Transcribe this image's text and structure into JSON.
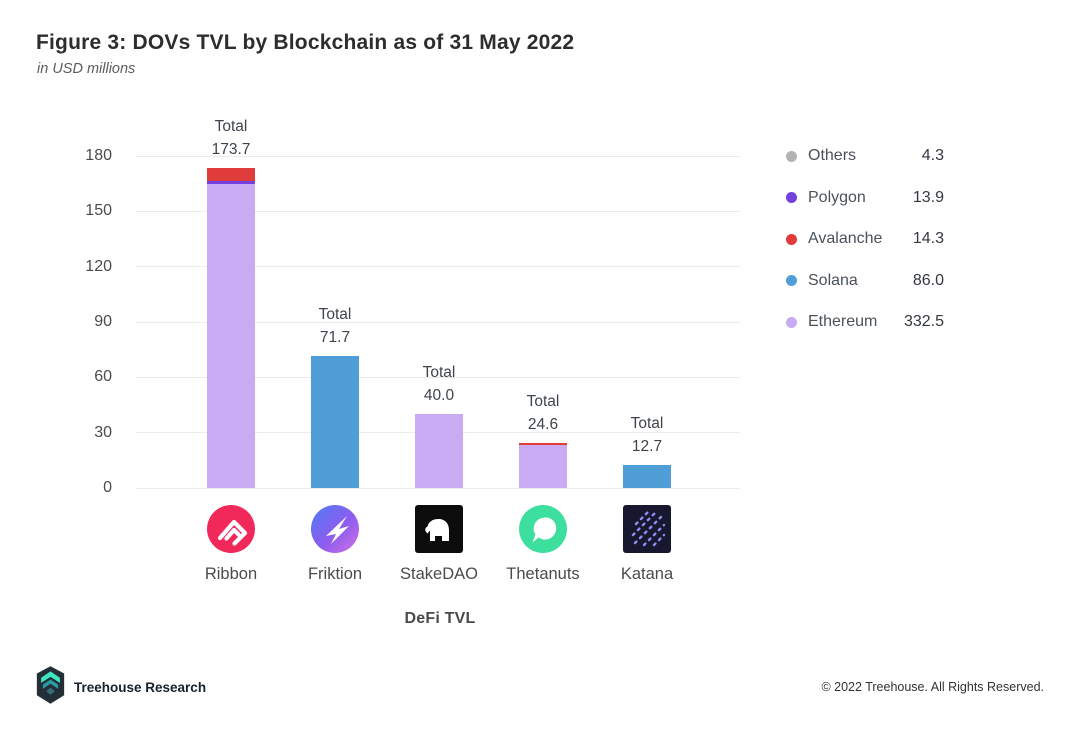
{
  "header": {
    "title": "Figure 3: DOVs TVL by Blockchain as of 31 May 2022",
    "subtitle": "in USD millions"
  },
  "chart_data": {
    "type": "bar",
    "stacked": true,
    "title": "Figure 3: DOVs TVL by Blockchain as of 31 May 2022",
    "subtitle": "in USD millions",
    "xlabel": "DeFi TVL",
    "ylabel": "",
    "ylim": [
      0,
      180
    ],
    "yticks": [
      0,
      30,
      60,
      90,
      120,
      150,
      180
    ],
    "grid": true,
    "legend_position": "right",
    "categories": [
      "Ribbon",
      "Friktion",
      "StakeDAO",
      "Thetanuts",
      "Katana"
    ],
    "total_label": "Total",
    "totals": [
      "173.7",
      "71.7",
      "40.0",
      "24.6",
      "12.7"
    ],
    "series": [
      {
        "name": "Ethereum",
        "color": "#c9abf3",
        "values": [
          164.7,
          0,
          40.0,
          23.1,
          0
        ]
      },
      {
        "name": "Solana",
        "color": "#4f9ed7",
        "values": [
          0,
          71.7,
          0,
          0,
          12.7
        ]
      },
      {
        "name": "Polygon",
        "color": "#7440e0",
        "values": [
          1.8,
          0,
          0,
          0,
          0
        ]
      },
      {
        "name": "Avalanche",
        "color": "#e03c3c",
        "values": [
          7.2,
          0,
          0,
          1.5,
          0
        ]
      },
      {
        "name": "Others",
        "color": "#b4b4b4",
        "values": [
          0,
          0,
          0,
          0,
          0
        ]
      }
    ],
    "legend": [
      {
        "name": "Others",
        "value": "4.3",
        "color": "#b4b4b4"
      },
      {
        "name": "Polygon",
        "value": "13.9",
        "color": "#7440e0"
      },
      {
        "name": "Avalanche",
        "value": "14.3",
        "color": "#e03c3c"
      },
      {
        "name": "Solana",
        "value": "86.0",
        "color": "#4f9ed7"
      },
      {
        "name": "Ethereum",
        "value": "332.5",
        "color": "#c9abf3"
      }
    ]
  },
  "protocols": [
    {
      "name": "Ribbon",
      "icon": "ribbon-icon"
    },
    {
      "name": "Friktion",
      "icon": "friktion-icon"
    },
    {
      "name": "StakeDAO",
      "icon": "stakedao-icon"
    },
    {
      "name": "Thetanuts",
      "icon": "thetanuts-icon"
    },
    {
      "name": "Katana",
      "icon": "katana-icon"
    }
  ],
  "footer": {
    "brand": "Treehouse Research",
    "copyright": "© 2022 Treehouse. All Rights Reserved."
  }
}
